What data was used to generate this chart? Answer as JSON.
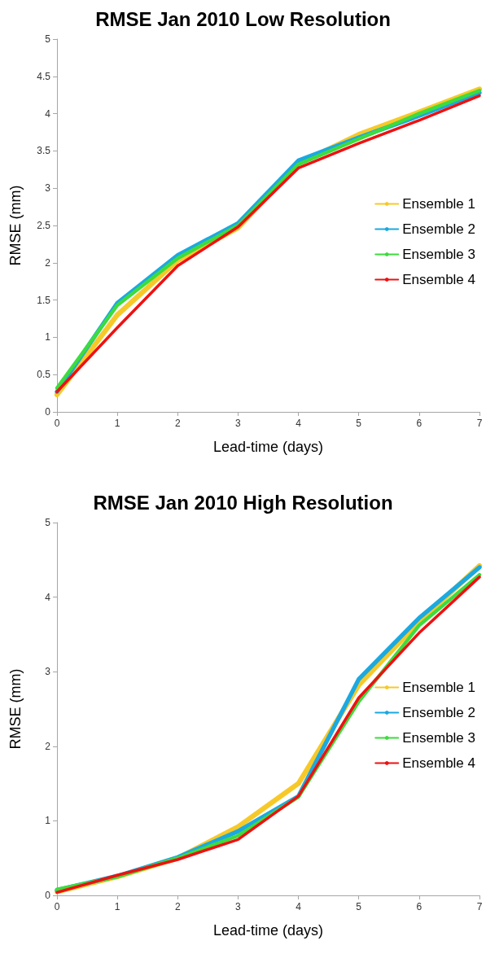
{
  "chart_data": [
    {
      "type": "line",
      "title": "RMSE Jan 2010 Low Resolution",
      "xlabel": "Lead-time (days)",
      "ylabel": "RMSE (mm)",
      "x": [
        0,
        1,
        2,
        3,
        4,
        5,
        6,
        7
      ],
      "series": [
        {
          "name": "Ensemble 1",
          "color": "#f7c928",
          "values": [
            0.23,
            1.3,
            2.03,
            2.47,
            3.33,
            3.72,
            4.02,
            4.33
          ]
        },
        {
          "name": "Ensemble 2",
          "color": "#1ba9e1",
          "values": [
            0.27,
            1.46,
            2.1,
            2.53,
            3.37,
            3.68,
            3.97,
            4.28
          ]
        },
        {
          "name": "Ensemble 3",
          "color": "#3ddc3d",
          "values": [
            0.32,
            1.43,
            2.06,
            2.5,
            3.32,
            3.66,
            4.0,
            4.31
          ]
        },
        {
          "name": "Ensemble 4",
          "color": "#ee1111",
          "values": [
            0.27,
            1.13,
            1.96,
            2.48,
            3.27,
            3.6,
            3.91,
            4.24
          ]
        }
      ],
      "xlim": [
        0,
        7
      ],
      "xticks": [
        0,
        1,
        2,
        3,
        4,
        5,
        6,
        7
      ],
      "ylim": [
        0,
        5
      ],
      "yticks": [
        0,
        0.5,
        1,
        1.5,
        2,
        2.5,
        3,
        3.5,
        4,
        4.5,
        5
      ],
      "grid": false,
      "legend": "right",
      "marker": "none",
      "line_style": "solid"
    },
    {
      "type": "line",
      "title": "RMSE Jan 2010 High Resolution",
      "xlabel": "Lead-time (days)",
      "ylabel": "RMSE (mm)",
      "x": [
        0,
        1,
        2,
        3,
        4,
        5,
        6,
        7
      ],
      "series": [
        {
          "name": "Ensemble 1",
          "color": "#f7c928",
          "values": [
            0.05,
            0.25,
            0.5,
            0.92,
            1.5,
            2.82,
            3.67,
            4.42
          ]
        },
        {
          "name": "Ensemble 2",
          "color": "#1ba9e1",
          "values": [
            0.07,
            0.26,
            0.51,
            0.86,
            1.33,
            2.9,
            3.72,
            4.4
          ]
        },
        {
          "name": "Ensemble 3",
          "color": "#3ddc3d",
          "values": [
            0.08,
            0.25,
            0.5,
            0.8,
            1.32,
            2.6,
            3.62,
            4.3
          ]
        },
        {
          "name": "Ensemble 4",
          "color": "#ee1111",
          "values": [
            0.04,
            0.27,
            0.48,
            0.75,
            1.33,
            2.65,
            3.52,
            4.27
          ]
        }
      ],
      "xlim": [
        0,
        7
      ],
      "xticks": [
        0,
        1,
        2,
        3,
        4,
        5,
        6,
        7
      ],
      "ylim": [
        0,
        5
      ],
      "yticks": [
        0,
        1,
        2,
        3,
        4,
        5
      ],
      "grid": false,
      "legend": "right",
      "marker": "none",
      "line_style": "solid"
    }
  ]
}
